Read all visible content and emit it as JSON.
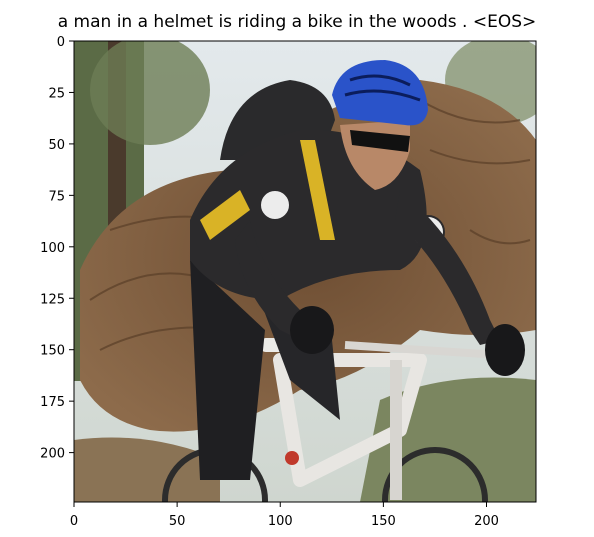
{
  "figure": {
    "caption": "a man in a helmet is riding a bike in the woods . <EOS>"
  },
  "axes": {
    "x_range": [
      0,
      224
    ],
    "y_range": [
      0,
      224
    ],
    "x_ticks": [
      0,
      50,
      100,
      150,
      200
    ],
    "y_ticks": [
      0,
      25,
      50,
      75,
      100,
      125,
      150,
      175,
      200
    ],
    "x_tick_labels": [
      "0",
      "50",
      "100",
      "150",
      "200"
    ],
    "y_tick_labels": [
      "0",
      "25",
      "50",
      "75",
      "100",
      "125",
      "150",
      "175",
      "200"
    ]
  },
  "image": {
    "subject": "man in blue helmet and black-yellow cycling jersey riding a white mountain bike past an uprooted tree in a forest"
  },
  "colors": {
    "helmet": "#2a53c9",
    "jersey": "#2b2a2c",
    "jersey_accent": "#d9b326",
    "bike_frame": "#e8e6e2",
    "roots": "#7b5a3c",
    "foliage": "#6f7d4c",
    "sky": "#dfe6e8"
  }
}
